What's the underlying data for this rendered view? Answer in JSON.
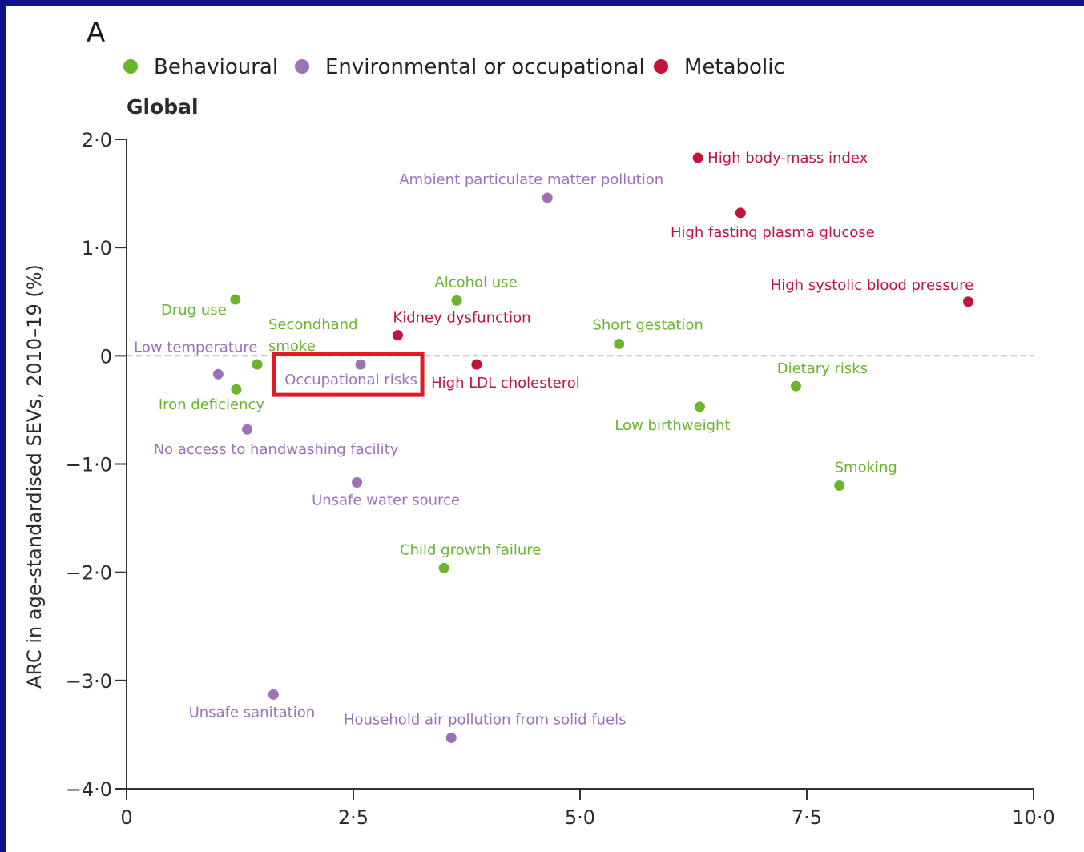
{
  "chart_data": {
    "type": "scatter",
    "panel_letter": "A",
    "subtitle": "Global",
    "xlabel": "",
    "ylabel": "ARC in age-standardised SEVs, 2010–19 (%)",
    "xlim": [
      0,
      10.0
    ],
    "ylim": [
      -4.0,
      2.0
    ],
    "x_ticks": [
      0,
      2.5,
      5.0,
      7.5,
      10.0
    ],
    "x_tick_labels": [
      "0",
      "2·5",
      "5·0",
      "7·5",
      "10·0"
    ],
    "y_ticks": [
      2.0,
      1.0,
      0,
      -1.0,
      -2.0,
      -3.0,
      -4.0
    ],
    "y_tick_labels": [
      "2·0",
      "1·0",
      "0",
      "−1·0",
      "−2·0",
      "−3·0",
      "−4·0"
    ],
    "grid": false,
    "reference_line": {
      "y": 0,
      "style": "dashed"
    },
    "legend_position": "top-left",
    "categories": [
      {
        "name": "Behavioural",
        "color": "#6ab42e"
      },
      {
        "name": "Environmental or occupational",
        "color": "#9b72b8"
      },
      {
        "name": "Metabolic",
        "color": "#c0143c"
      }
    ],
    "highlight": {
      "label": "Occupational risks",
      "color": "#e01b24",
      "shape": "rectangle"
    },
    "points": [
      {
        "label": "High body-mass index",
        "category": "Metabolic",
        "x": 6.3,
        "y": 1.83
      },
      {
        "label": "High fasting plasma glucose",
        "category": "Metabolic",
        "x": 6.77,
        "y": 1.32
      },
      {
        "label": "High systolic blood pressure",
        "category": "Metabolic",
        "x": 9.28,
        "y": 0.5
      },
      {
        "label": "Kidney dysfunction",
        "category": "Metabolic",
        "x": 2.99,
        "y": 0.19
      },
      {
        "label": "High LDL cholesterol",
        "category": "Metabolic",
        "x": 3.86,
        "y": -0.08
      },
      {
        "label": "Ambient particulate matter pollution",
        "category": "Environmental or occupational",
        "x": 4.64,
        "y": 1.46
      },
      {
        "label": "Low temperature",
        "category": "Environmental or occupational",
        "x": 1.01,
        "y": -0.17
      },
      {
        "label": "Occupational risks",
        "category": "Environmental or occupational",
        "x": 2.58,
        "y": -0.08
      },
      {
        "label": "No access to handwashing facility",
        "category": "Environmental or occupational",
        "x": 1.33,
        "y": -0.68
      },
      {
        "label": "Unsafe water source",
        "category": "Environmental or occupational",
        "x": 2.54,
        "y": -1.17
      },
      {
        "label": "Unsafe sanitation",
        "category": "Environmental or occupational",
        "x": 1.62,
        "y": -3.13
      },
      {
        "label": "Household air pollution from solid fuels",
        "category": "Environmental or occupational",
        "x": 3.58,
        "y": -3.53
      },
      {
        "label": "Drug use",
        "category": "Behavioural",
        "x": 1.2,
        "y": 0.52
      },
      {
        "label": "Alcohol use",
        "category": "Behavioural",
        "x": 3.64,
        "y": 0.51
      },
      {
        "label": "Secondhand smoke",
        "category": "Behavioural",
        "x": 1.44,
        "y": -0.08
      },
      {
        "label": "Iron deficiency",
        "category": "Behavioural",
        "x": 1.21,
        "y": -0.31
      },
      {
        "label": "Short gestation",
        "category": "Behavioural",
        "x": 5.43,
        "y": 0.11
      },
      {
        "label": "Dietary risks",
        "category": "Behavioural",
        "x": 7.38,
        "y": -0.28
      },
      {
        "label": "Low birthweight",
        "category": "Behavioural",
        "x": 6.32,
        "y": -0.47
      },
      {
        "label": "Smoking",
        "category": "Behavioural",
        "x": 7.86,
        "y": -1.2
      },
      {
        "label": "Child growth failure",
        "category": "Behavioural",
        "x": 3.5,
        "y": -1.96
      }
    ]
  }
}
